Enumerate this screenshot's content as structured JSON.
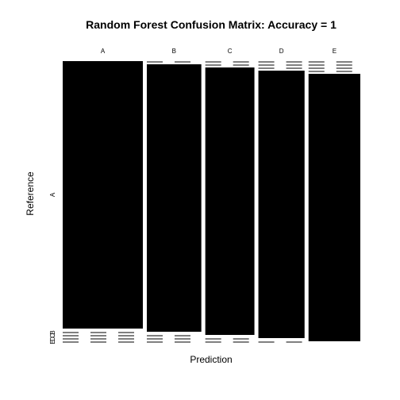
{
  "chart_data": {
    "type": "mosaic",
    "title": "Random Forest Confusion Matrix: Accuracy = 1",
    "xlabel": "Prediction",
    "ylabel": "Reference",
    "categories": [
      "A",
      "B",
      "C",
      "D",
      "E"
    ],
    "counts": [
      [
        1116,
        0,
        0,
        0,
        0
      ],
      [
        0,
        759,
        0,
        0,
        0
      ],
      [
        0,
        0,
        684,
        0,
        0
      ],
      [
        0,
        0,
        0,
        643,
        0
      ],
      [
        0,
        0,
        0,
        0,
        721
      ]
    ],
    "accuracy": 1
  }
}
